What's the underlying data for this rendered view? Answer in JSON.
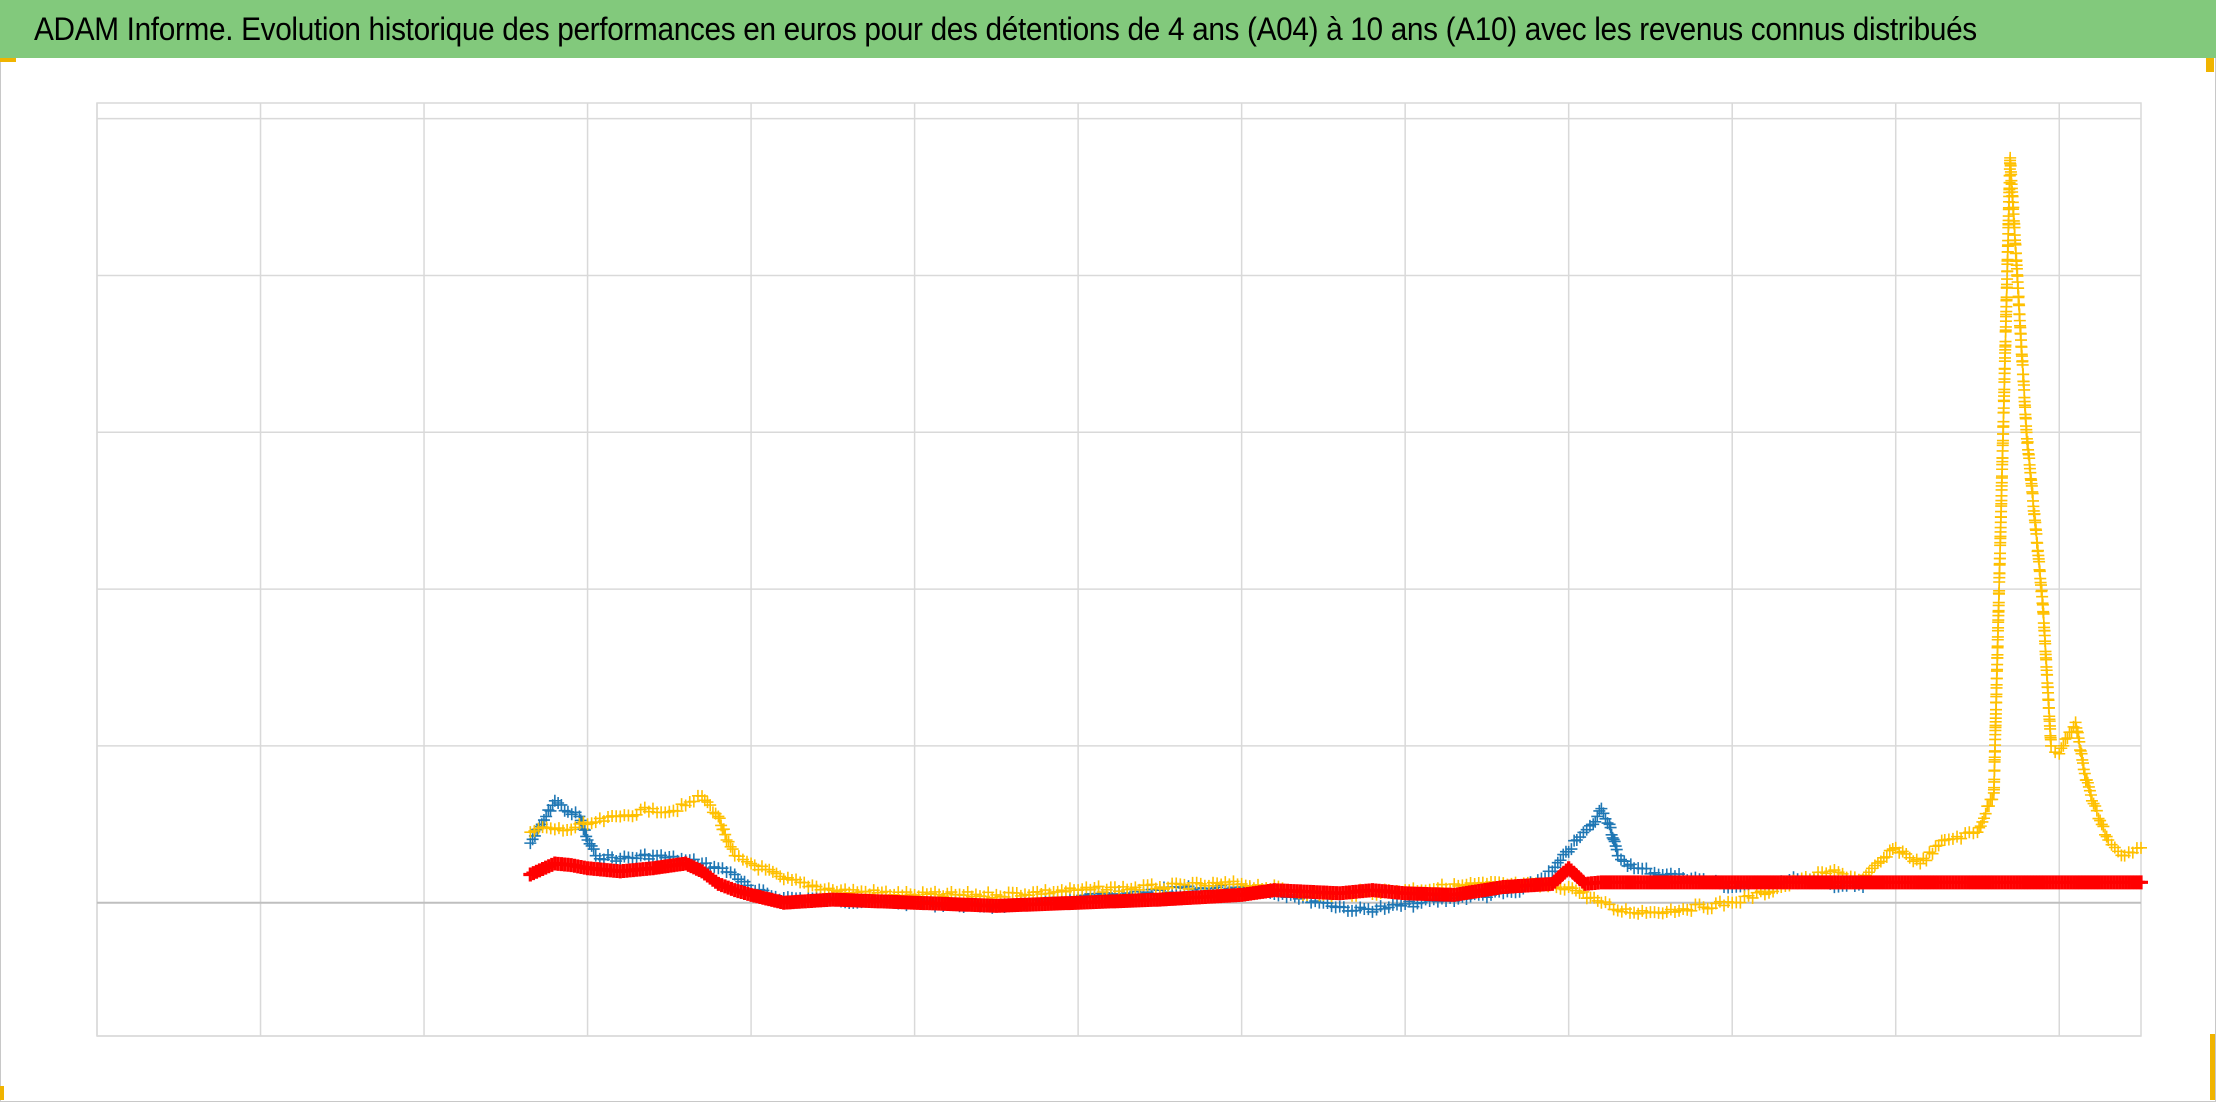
{
  "title": "ADAM Informe. Evolution historique des performances en euros pour des détentions de 4 ans (A04) à 10 ans (A10) avec les revenus connus distribués",
  "colors": {
    "title_background": "#82c97c",
    "series_blue": "#1f77b4",
    "series_yellow": "#ffc000",
    "series_red": "#ff0000",
    "grid": "#d9d9d9",
    "zero_line": "#bfbfbf",
    "corner_marks": "#f0b400"
  },
  "chart_data": {
    "type": "scatter",
    "title": "ADAM Informe. Evolution historique des performances en euros pour des détentions de 4 ans (A04) à 10 ans (A10) avec les revenus connus distribués",
    "xlabel": "",
    "ylabel": "",
    "xlim": [
      0,
      12.5
    ],
    "ylim": [
      -0.85,
      5.1
    ],
    "x_gridlines": [
      0,
      1,
      2,
      3,
      4,
      5,
      6,
      7,
      8,
      9,
      10,
      11,
      12
    ],
    "y_gridlines": [
      -0.85,
      0,
      1,
      2,
      3,
      4,
      5
    ],
    "tick_labels_visible": false,
    "legend": "none",
    "grid": true,
    "marker": "plus",
    "series": [
      {
        "color": "#1f77b4",
        "x": [
          2.65,
          2.72,
          2.8,
          2.88,
          2.95,
          3.0,
          3.05,
          3.2,
          3.4,
          3.6,
          3.7,
          3.8,
          3.9,
          4.0,
          4.2,
          4.5,
          5.0,
          5.5,
          6.0,
          6.5,
          7.0,
          7.3,
          7.5,
          7.7,
          7.9,
          8.1,
          8.4,
          8.7,
          8.9,
          9.05,
          9.15,
          9.2,
          9.25,
          9.3,
          9.4,
          9.6,
          9.8,
          10.0,
          10.2,
          10.4,
          10.6,
          10.8
        ],
        "y": [
          0.38,
          0.5,
          0.65,
          0.58,
          0.55,
          0.4,
          0.3,
          0.28,
          0.3,
          0.27,
          0.25,
          0.22,
          0.18,
          0.08,
          0.03,
          0.02,
          0.0,
          -0.02,
          0.03,
          0.08,
          0.1,
          0.05,
          0.0,
          -0.05,
          -0.03,
          0.0,
          0.04,
          0.07,
          0.2,
          0.4,
          0.5,
          0.6,
          0.5,
          0.3,
          0.22,
          0.18,
          0.15,
          0.1,
          0.12,
          0.15,
          0.12,
          0.1
        ]
      },
      {
        "color": "#ffc000",
        "x": [
          2.65,
          2.75,
          2.85,
          3.0,
          3.2,
          3.4,
          3.5,
          3.6,
          3.7,
          3.8,
          3.85,
          3.9,
          4.0,
          4.2,
          4.5,
          5.0,
          5.5,
          6.0,
          6.5,
          7.0,
          7.5,
          8.0,
          8.5,
          9.0,
          9.2,
          9.3,
          9.5,
          9.7,
          10.0,
          10.3,
          10.6,
          10.8,
          11.0,
          11.15,
          11.3,
          11.5,
          11.6,
          11.7,
          11.8,
          11.9,
          11.95,
          12.0,
          12.05,
          12.1,
          12.15,
          12.2,
          12.3,
          12.4,
          12.5
        ],
        "y": [
          0.45,
          0.48,
          0.46,
          0.5,
          0.55,
          0.6,
          0.58,
          0.62,
          0.68,
          0.55,
          0.4,
          0.3,
          0.25,
          0.15,
          0.08,
          0.05,
          0.05,
          0.08,
          0.1,
          0.12,
          0.05,
          0.08,
          0.12,
          0.1,
          0.0,
          -0.05,
          -0.06,
          -0.04,
          0.0,
          0.1,
          0.2,
          0.15,
          0.35,
          0.25,
          0.4,
          0.45,
          0.7,
          4.75,
          3.0,
          1.9,
          1.0,
          0.95,
          1.05,
          1.15,
          0.85,
          0.65,
          0.4,
          0.3,
          0.35
        ]
      },
      {
        "color": "#ff0000",
        "x": [
          2.65,
          2.8,
          2.9,
          3.0,
          3.2,
          3.4,
          3.6,
          3.7,
          3.8,
          3.9,
          4.0,
          4.2,
          4.5,
          5.0,
          5.5,
          6.0,
          6.5,
          7.0,
          7.2,
          7.4,
          7.6,
          7.8,
          8.0,
          8.3,
          8.6,
          8.9,
          9.0,
          9.1,
          9.2,
          9.5,
          10.0,
          10.5,
          11.0,
          11.5,
          12.0,
          12.5
        ],
        "y": [
          0.18,
          0.25,
          0.24,
          0.22,
          0.2,
          0.22,
          0.25,
          0.2,
          0.12,
          0.08,
          0.05,
          0.0,
          0.02,
          0.0,
          -0.02,
          0.0,
          0.02,
          0.05,
          0.08,
          0.07,
          0.06,
          0.08,
          0.06,
          0.05,
          0.1,
          0.12,
          0.22,
          0.12,
          0.13,
          0.13,
          0.13,
          0.13,
          0.13,
          0.13,
          0.13,
          0.13
        ]
      }
    ]
  }
}
